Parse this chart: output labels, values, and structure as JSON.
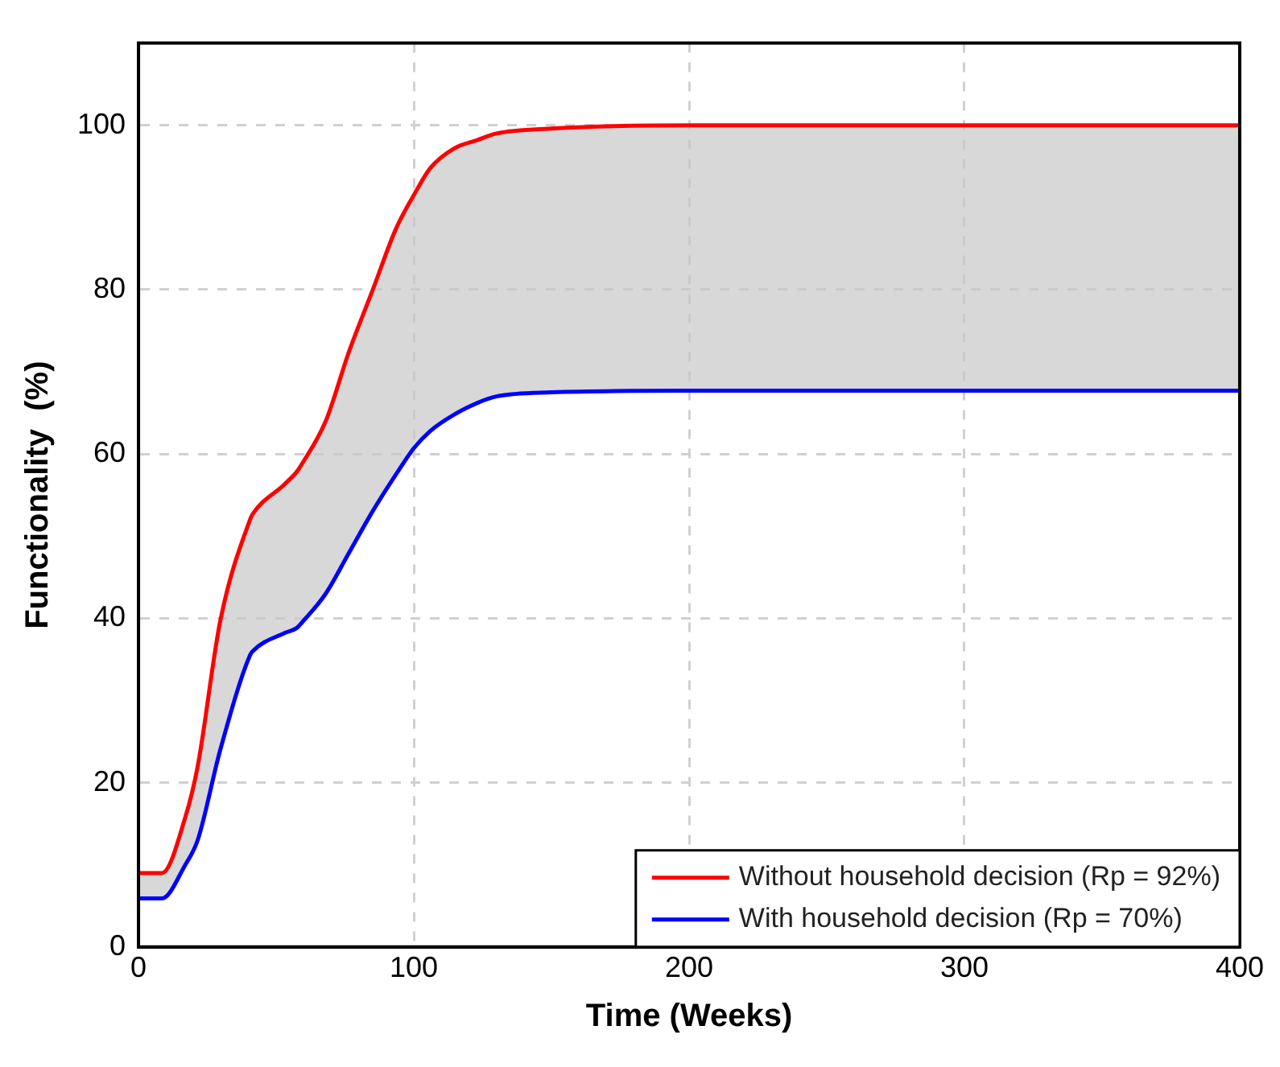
{
  "chart_data": {
    "type": "line",
    "xlabel": "Time (Weeks)",
    "ylabel": "Functionality  (%)",
    "x": [
      0,
      8.5,
      17,
      21.5,
      29.7,
      40.5,
      41.5,
      53,
      57.4,
      59.4,
      68,
      76.5,
      85,
      93.5,
      100,
      106,
      114.7,
      123,
      130,
      150,
      200,
      300,
      400
    ],
    "series": [
      {
        "name": "Without household decision (Rp = 92%)",
        "color": "#ff0000",
        "values": [
          9,
          9,
          15.8,
          22,
          39.7,
          52,
          52.7,
          56.3,
          57.8,
          58.8,
          64,
          72.5,
          79.9,
          87.4,
          91.5,
          94.8,
          97.2,
          98.2,
          99,
          99.6,
          100,
          100,
          100
        ],
        "lower": [
          5.9,
          5.9,
          10,
          13,
          24,
          35.5,
          36,
          38.2,
          38.8,
          39.5,
          43,
          48,
          53,
          57.5,
          60.7,
          62.8,
          64.8,
          66.2,
          67,
          67.5,
          67.7,
          67.7,
          67.7
        ],
        "upper": [
          9,
          9,
          15.8,
          22,
          39.7,
          52,
          52.7,
          56.3,
          57.8,
          58.8,
          64,
          72.5,
          79.9,
          87.4,
          91.5,
          94.8,
          97.2,
          98.2,
          99,
          99.6,
          100,
          100,
          100
        ]
      },
      {
        "name": "With household decision (Rp = 70%)",
        "color": "#0000ff",
        "values": [
          5.9,
          5.9,
          10,
          13,
          24,
          35.5,
          36,
          38.2,
          38.8,
          39.5,
          43,
          48,
          53,
          57.5,
          60.7,
          62.8,
          64.8,
          66.2,
          67,
          67.5,
          67.7,
          67.7,
          67.7
        ]
      }
    ],
    "xlim": [
      0,
      400
    ],
    "xticks": [
      0,
      100,
      200,
      300,
      400
    ],
    "ylim": [
      0,
      110
    ],
    "yticks": [
      0,
      20,
      40,
      60,
      80,
      100
    ],
    "grid": true,
    "legend": "bottom right",
    "line_style": "solid",
    "marker": "none"
  }
}
